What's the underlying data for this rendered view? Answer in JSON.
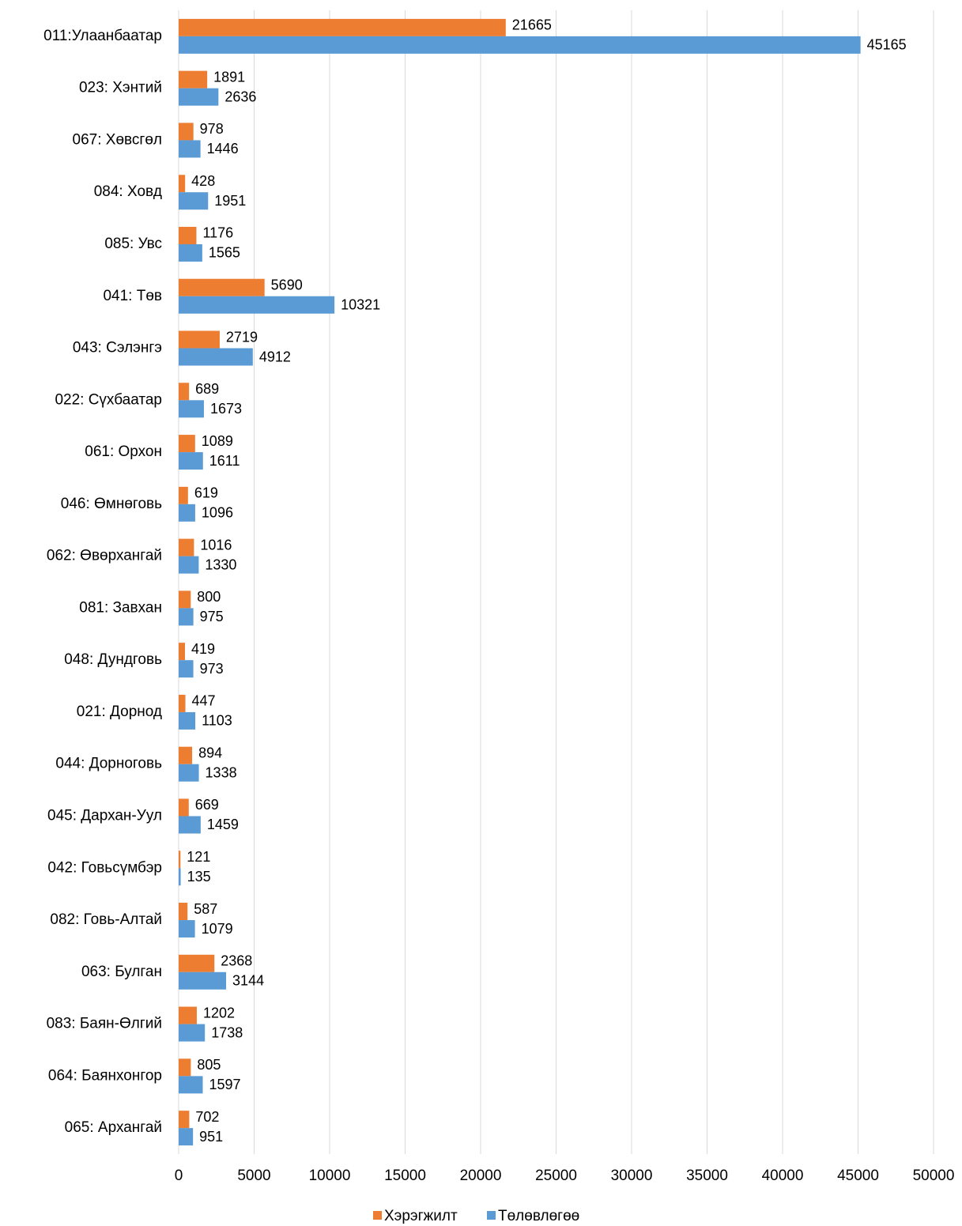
{
  "chart_data": {
    "type": "bar",
    "orientation": "horizontal",
    "categories": [
      "011:Улаанбаатар",
      "023: Хэнтий",
      "067: Хөвсгөл",
      "084: Ховд",
      "085: Увс",
      "041: Төв",
      "043: Сэлэнгэ",
      "022: Сүхбаатар",
      "061: Орхон",
      "046: Өмнөговь",
      "062: Өвөрхангай",
      "081: Завхан",
      "048: Дундговь",
      "021: Дорнод",
      "044: Дорноговь",
      "045: Дархан-Уул",
      "042: Говьсүмбэр",
      "082: Говь-Алтай",
      "063: Булган",
      "083: Баян-Өлгий",
      "064: Баянхонгор",
      "065: Архангай"
    ],
    "series": [
      {
        "name": "Хэрэгжилт",
        "color": "#ed7d31",
        "values": [
          21665,
          1891,
          978,
          428,
          1176,
          5690,
          2719,
          689,
          1089,
          619,
          1016,
          800,
          419,
          447,
          894,
          669,
          121,
          587,
          2368,
          1202,
          805,
          702
        ]
      },
      {
        "name": "Төлөвлөгөө",
        "color": "#5b9bd5",
        "values": [
          45165,
          2636,
          1446,
          1951,
          1565,
          10321,
          4912,
          1673,
          1611,
          1096,
          1330,
          975,
          973,
          1103,
          1338,
          1459,
          135,
          1079,
          3144,
          1738,
          1597,
          951
        ]
      }
    ],
    "xlim": [
      0,
      50000
    ],
    "xticks": [
      0,
      5000,
      10000,
      15000,
      20000,
      25000,
      30000,
      35000,
      40000,
      45000,
      50000
    ],
    "grid": true,
    "legend": "bottom"
  }
}
